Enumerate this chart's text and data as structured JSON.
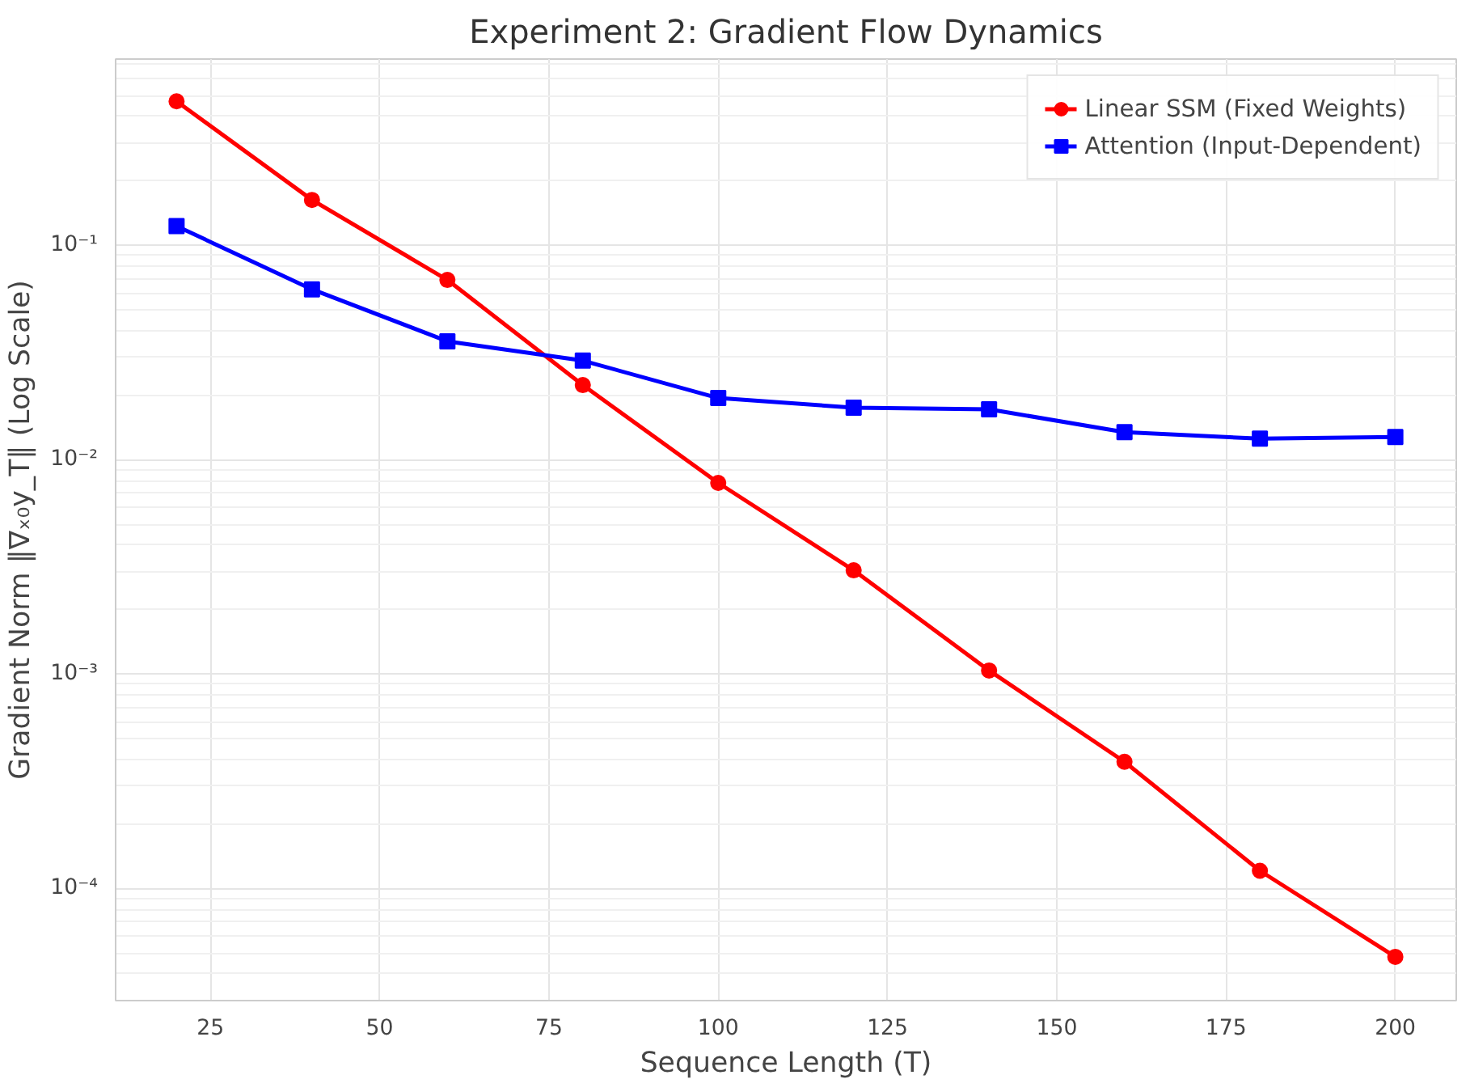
{
  "chart_data": {
    "type": "line",
    "title": "Experiment 2: Gradient Flow Dynamics",
    "xlabel": "Sequence Length (T)",
    "ylabel": "Gradient Norm ‖∇ₓ₀y_T‖ (Log Scale)",
    "x": [
      20,
      40,
      60,
      80,
      100,
      120,
      140,
      160,
      180,
      200
    ],
    "series": [
      {
        "name": "Linear SSM (Fixed Weights)",
        "color": "#ff0000",
        "marker": "circle",
        "values": [
          0.47,
          0.163,
          0.069,
          0.0223,
          0.0078,
          0.00305,
          0.00104,
          0.00039,
          0.000121,
          4.8e-05
        ]
      },
      {
        "name": "Attention (Input-Dependent)",
        "color": "#0000ff",
        "marker": "square",
        "values": [
          0.123,
          0.0624,
          0.0357,
          0.029,
          0.0194,
          0.0175,
          0.0172,
          0.01345,
          0.01254,
          0.01276
        ]
      }
    ],
    "log": "y",
    "xlim": [
      11,
      209
    ],
    "ylim": [
      3e-05,
      0.74
    ],
    "xticks": [
      25,
      50,
      75,
      100,
      125,
      150,
      175,
      200
    ],
    "yticks": [
      {
        "value": 0.0001,
        "label": "10⁻⁴"
      },
      {
        "value": 0.001,
        "label": "10⁻³"
      },
      {
        "value": 0.01,
        "label": "10⁻²"
      },
      {
        "value": 0.1,
        "label": "10⁻¹"
      }
    ],
    "grid": true,
    "legend": "top right",
    "line_style": "solid"
  }
}
